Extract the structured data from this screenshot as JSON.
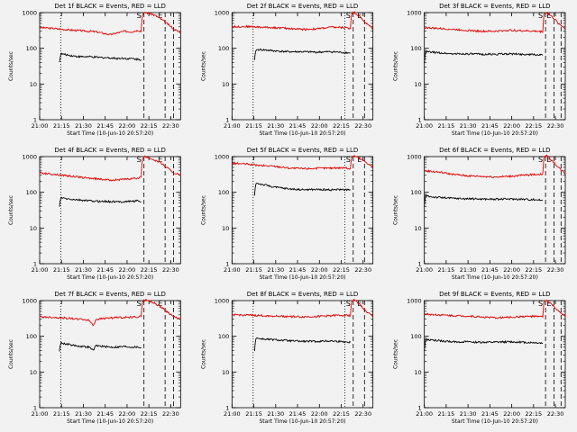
{
  "chart_data": {
    "type": "line",
    "layout": {
      "rows": 3,
      "cols": 3
    },
    "xlabel": "Start Time (10-Jun-10 20:57:20)",
    "ylabel": "Counts/sec",
    "xlim": [
      0,
      100
    ],
    "ylim": [
      1,
      1000
    ],
    "log_y": true,
    "xtick_labels": [
      "21:00",
      "21:15",
      "21:30",
      "21:45",
      "22:00",
      "22:15",
      "22:30"
    ],
    "ytick_labels": [
      "1",
      "10",
      "100",
      "1000"
    ],
    "series_colors": {
      "red": "#e00000",
      "black": "#000000"
    },
    "flags": {
      "start": "S",
      "end": "E",
      "extra": "E"
    },
    "panels": [
      {
        "title": "Det 1f BLACK = Events, RED = LLD",
        "series": [
          {
            "color": "red",
            "x": [
              0,
              10,
              20,
              30,
              40,
              50,
              60,
              65,
              68,
              70,
              72,
              73,
              75,
              80,
              85,
              90,
              95,
              98,
              100
            ],
            "y": [
              380,
              360,
              330,
              310,
              290,
              240,
              300,
              290,
              310,
              320,
              300,
              920,
              1000,
              900,
              700,
              500,
              350,
              300,
              280
            ]
          },
          {
            "color": "black",
            "x": [
              14,
              15,
              20,
              25,
              30,
              35,
              40,
              45,
              50,
              55,
              60,
              63,
              65,
              68,
              72
            ],
            "y": [
              40,
              70,
              65,
              60,
              58,
              58,
              56,
              55,
              54,
              52,
              53,
              50,
              52,
              50,
              48
            ]
          }
        ],
        "vlines_dotted": [
          15
        ],
        "vlines_dashed": [
          74,
          89,
          95
        ],
        "label_positions": {
          "first": "6",
          "second": "16"
        }
      },
      {
        "title": "Det 2f BLACK = Events, RED = LLD",
        "series": [
          {
            "color": "red",
            "x": [
              0,
              10,
              20,
              30,
              40,
              50,
              60,
              70,
              80,
              84,
              85,
              87,
              90,
              95,
              100
            ],
            "y": [
              400,
              410,
              390,
              380,
              360,
              340,
              350,
              390,
              380,
              360,
              980,
              1000,
              800,
              500,
              350
            ]
          },
          {
            "color": "black",
            "x": [
              16,
              17,
              20,
              30,
              40,
              50,
              60,
              70,
              80,
              84
            ],
            "y": [
              45,
              90,
              92,
              85,
              80,
              80,
              78,
              80,
              76,
              74
            ]
          }
        ],
        "vlines_dotted": [
          15,
          80
        ],
        "vlines_dashed": [
          86,
          94
        ],
        "label_positions": {
          "first": "6",
          "second": "16"
        }
      },
      {
        "title": "Det 3f BLACK = Events, RED = LLD",
        "series": [
          {
            "color": "red",
            "x": [
              0,
              10,
              20,
              30,
              40,
              50,
              60,
              70,
              80,
              84,
              85,
              87,
              90,
              95,
              100
            ],
            "y": [
              380,
              360,
              340,
              320,
              300,
              300,
              320,
              310,
              300,
              290,
              950,
              1000,
              800,
              500,
              350
            ]
          },
          {
            "color": "black",
            "x": [
              0,
              1,
              5,
              10,
              20,
              30,
              40,
              50,
              60,
              70,
              80,
              84
            ],
            "y": [
              40,
              80,
              78,
              75,
              70,
              70,
              68,
              68,
              70,
              68,
              66,
              64
            ]
          }
        ],
        "vlines_dotted": [],
        "vlines_dashed": [
          86,
          92,
          97
        ],
        "label_positions": {
          "first": "6",
          "second": "16"
        }
      },
      {
        "title": "Det 4f BLACK = Events, RED = LLD",
        "series": [
          {
            "color": "red",
            "x": [
              0,
              10,
              20,
              30,
              40,
              50,
              60,
              70,
              72,
              73,
              75,
              80,
              85,
              90,
              95,
              100
            ],
            "y": [
              350,
              320,
              290,
              260,
              240,
              220,
              230,
              250,
              260,
              900,
              1000,
              850,
              700,
              500,
              350,
              300
            ]
          },
          {
            "color": "black",
            "x": [
              14,
              15,
              20,
              25,
              30,
              35,
              40,
              45,
              50,
              55,
              60,
              65,
              70,
              72
            ],
            "y": [
              40,
              70,
              65,
              62,
              60,
              58,
              56,
              56,
              55,
              54,
              55,
              56,
              58,
              55
            ]
          }
        ],
        "vlines_dotted": [
          15
        ],
        "vlines_dashed": [
          74,
          89,
          95
        ],
        "label_positions": {
          "first": "6",
          "second": "16"
        }
      },
      {
        "title": "Det 5f BLACK = Events, RED = LLD",
        "series": [
          {
            "color": "red",
            "x": [
              0,
              10,
              20,
              30,
              40,
              50,
              60,
              70,
              80,
              84,
              85,
              87,
              90,
              95,
              100
            ],
            "y": [
              650,
              620,
              560,
              540,
              480,
              460,
              470,
              480,
              490,
              450,
              1000,
              1050,
              900,
              700,
              500
            ]
          },
          {
            "color": "black",
            "x": [
              16,
              17,
              20,
              30,
              40,
              50,
              60,
              70,
              80,
              84
            ],
            "y": [
              80,
              180,
              170,
              140,
              125,
              118,
              120,
              118,
              120,
              115
            ]
          }
        ],
        "vlines_dotted": [
          15,
          80
        ],
        "vlines_dashed": [
          86,
          94
        ],
        "label_positions": {
          "first": "6",
          "second": "16"
        }
      },
      {
        "title": "Det 6f BLACK = Events, RED = LLD",
        "series": [
          {
            "color": "red",
            "x": [
              0,
              10,
              20,
              30,
              40,
              50,
              60,
              70,
              80,
              84,
              85,
              87,
              90,
              95,
              100
            ],
            "y": [
              400,
              370,
              320,
              290,
              280,
              270,
              280,
              300,
              320,
              320,
              1000,
              1050,
              800,
              500,
              320
            ]
          },
          {
            "color": "black",
            "x": [
              0,
              1,
              5,
              10,
              20,
              30,
              40,
              50,
              60,
              70,
              80,
              84
            ],
            "y": [
              40,
              80,
              75,
              72,
              68,
              66,
              65,
              64,
              65,
              64,
              62,
              60
            ]
          }
        ],
        "vlines_dotted": [],
        "vlines_dashed": [
          86,
          92,
          97
        ],
        "label_positions": {
          "first": "6",
          "second": "16"
        }
      },
      {
        "title": "Det 7f BLACK = Events, RED = LLD",
        "series": [
          {
            "color": "red",
            "x": [
              0,
              10,
              20,
              30,
              35,
              38,
              40,
              50,
              60,
              70,
              72,
              73,
              75,
              80,
              85,
              90,
              95,
              100
            ],
            "y": [
              350,
              340,
              320,
              300,
              280,
              200,
              300,
              330,
              340,
              350,
              360,
              950,
              1050,
              900,
              700,
              500,
              350,
              300
            ]
          },
          {
            "color": "black",
            "x": [
              14,
              15,
              20,
              25,
              30,
              35,
              38,
              40,
              45,
              50,
              55,
              60,
              65,
              70,
              72
            ],
            "y": [
              40,
              65,
              60,
              55,
              52,
              50,
              40,
              55,
              52,
              50,
              50,
              52,
              50,
              50,
              48
            ]
          }
        ],
        "vlines_dotted": [
          15
        ],
        "vlines_dashed": [
          74,
          89,
          95
        ],
        "label_positions": {
          "first": "6",
          "second": "16"
        }
      },
      {
        "title": "Det 8f BLACK = Events, RED = LLD",
        "series": [
          {
            "color": "red",
            "x": [
              0,
              10,
              20,
              30,
              40,
              50,
              60,
              70,
              80,
              84,
              85,
              87,
              90,
              95,
              100
            ],
            "y": [
              400,
              390,
              380,
              370,
              360,
              350,
              360,
              380,
              390,
              380,
              1000,
              1050,
              800,
              500,
              350
            ]
          },
          {
            "color": "black",
            "x": [
              16,
              17,
              20,
              30,
              40,
              50,
              60,
              70,
              80,
              84
            ],
            "y": [
              40,
              90,
              85,
              80,
              75,
              72,
              72,
              74,
              70,
              68
            ]
          }
        ],
        "vlines_dotted": [
          15,
          80
        ],
        "vlines_dashed": [
          86,
          94
        ],
        "label_positions": {
          "first": "6",
          "second": "16"
        }
      },
      {
        "title": "Det 9f BLACK = Events, RED = LLD",
        "series": [
          {
            "color": "red",
            "x": [
              0,
              10,
              20,
              30,
              40,
              50,
              60,
              70,
              80,
              84,
              85,
              87,
              90,
              95,
              100
            ],
            "y": [
              420,
              400,
              380,
              370,
              350,
              330,
              340,
              360,
              360,
              350,
              950,
              1000,
              800,
              500,
              350
            ]
          },
          {
            "color": "black",
            "x": [
              0,
              1,
              5,
              10,
              20,
              30,
              40,
              50,
              60,
              70,
              80,
              84
            ],
            "y": [
              40,
              80,
              78,
              75,
              70,
              70,
              68,
              68,
              70,
              68,
              66,
              64
            ]
          }
        ],
        "vlines_dotted": [],
        "vlines_dashed": [
          86,
          92,
          97
        ],
        "label_positions": {
          "first": "6",
          "second": "16"
        }
      }
    ]
  }
}
